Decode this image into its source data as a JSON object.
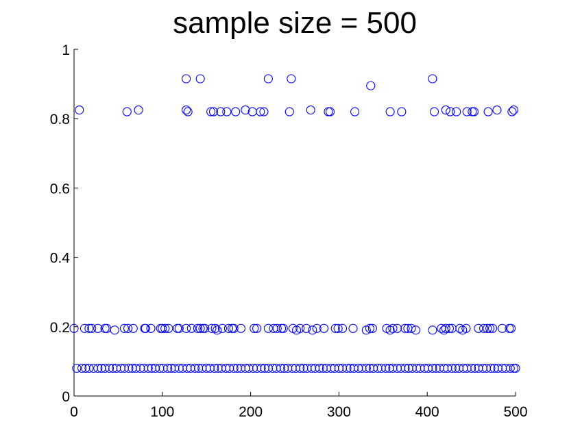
{
  "chart_data": {
    "type": "scatter",
    "title": "sample size = 500",
    "xlabel": "",
    "ylabel": "",
    "xlim": [
      0,
      500
    ],
    "ylim": [
      0,
      1
    ],
    "x_ticks": [
      0,
      100,
      200,
      300,
      400,
      500
    ],
    "y_ticks": [
      0,
      0.2,
      0.4,
      0.6,
      0.8,
      1
    ],
    "x_tick_labels": [
      "0",
      "100",
      "200",
      "300",
      "400",
      "500"
    ],
    "y_tick_labels": [
      "0",
      "0.2",
      "0.4",
      "0.6",
      "0.8",
      "1"
    ],
    "grid": false,
    "marker": "circle-open",
    "marker_color": "#0000ff",
    "series": [
      {
        "points": [
          [
            127,
            0.915
          ],
          [
            143,
            0.915
          ],
          [
            220,
            0.915
          ],
          [
            246,
            0.915
          ],
          [
            406,
            0.915
          ],
          [
            336,
            0.895
          ],
          [
            6,
            0.825
          ],
          [
            60,
            0.82
          ],
          [
            73,
            0.825
          ],
          [
            127,
            0.825
          ],
          [
            129,
            0.82
          ],
          [
            155,
            0.82
          ],
          [
            158,
            0.82
          ],
          [
            166,
            0.82
          ],
          [
            173,
            0.82
          ],
          [
            183,
            0.82
          ],
          [
            194,
            0.825
          ],
          [
            202,
            0.82
          ],
          [
            211,
            0.82
          ],
          [
            215,
            0.82
          ],
          [
            244,
            0.82
          ],
          [
            268,
            0.825
          ],
          [
            288,
            0.82
          ],
          [
            290,
            0.82
          ],
          [
            318,
            0.82
          ],
          [
            358,
            0.82
          ],
          [
            371,
            0.82
          ],
          [
            408,
            0.82
          ],
          [
            421,
            0.825
          ],
          [
            426,
            0.82
          ],
          [
            433,
            0.82
          ],
          [
            445,
            0.82
          ],
          [
            451,
            0.82
          ],
          [
            453,
            0.82
          ],
          [
            469,
            0.82
          ],
          [
            479,
            0.825
          ],
          [
            496,
            0.82
          ],
          [
            498,
            0.825
          ],
          [
            0,
            0.195
          ],
          [
            12,
            0.195
          ],
          [
            17,
            0.195
          ],
          [
            20,
            0.195
          ],
          [
            27,
            0.195
          ],
          [
            35,
            0.195
          ],
          [
            37,
            0.195
          ],
          [
            46,
            0.19
          ],
          [
            57,
            0.195
          ],
          [
            61,
            0.195
          ],
          [
            67,
            0.195
          ],
          [
            80,
            0.195
          ],
          [
            81,
            0.195
          ],
          [
            87,
            0.195
          ],
          [
            98,
            0.195
          ],
          [
            100,
            0.195
          ],
          [
            103,
            0.195
          ],
          [
            107,
            0.195
          ],
          [
            117,
            0.195
          ],
          [
            119,
            0.195
          ],
          [
            127,
            0.195
          ],
          [
            133,
            0.195
          ],
          [
            140,
            0.195
          ],
          [
            143,
            0.195
          ],
          [
            146,
            0.195
          ],
          [
            148,
            0.195
          ],
          [
            156,
            0.195
          ],
          [
            160,
            0.195
          ],
          [
            162,
            0.19
          ],
          [
            168,
            0.195
          ],
          [
            175,
            0.195
          ],
          [
            179,
            0.195
          ],
          [
            181,
            0.195
          ],
          [
            189,
            0.195
          ],
          [
            204,
            0.195
          ],
          [
            207,
            0.195
          ],
          [
            220,
            0.195
          ],
          [
            226,
            0.195
          ],
          [
            230,
            0.195
          ],
          [
            235,
            0.195
          ],
          [
            237,
            0.195
          ],
          [
            248,
            0.195
          ],
          [
            252,
            0.19
          ],
          [
            256,
            0.195
          ],
          [
            263,
            0.195
          ],
          [
            270,
            0.19
          ],
          [
            275,
            0.195
          ],
          [
            283,
            0.195
          ],
          [
            296,
            0.195
          ],
          [
            299,
            0.195
          ],
          [
            304,
            0.195
          ],
          [
            316,
            0.195
          ],
          [
            331,
            0.19
          ],
          [
            335,
            0.195
          ],
          [
            338,
            0.195
          ],
          [
            354,
            0.195
          ],
          [
            358,
            0.19
          ],
          [
            361,
            0.195
          ],
          [
            366,
            0.195
          ],
          [
            375,
            0.195
          ],
          [
            378,
            0.195
          ],
          [
            382,
            0.195
          ],
          [
            387,
            0.19
          ],
          [
            406,
            0.19
          ],
          [
            416,
            0.195
          ],
          [
            419,
            0.19
          ],
          [
            421,
            0.195
          ],
          [
            425,
            0.195
          ],
          [
            428,
            0.195
          ],
          [
            437,
            0.195
          ],
          [
            440,
            0.19
          ],
          [
            444,
            0.195
          ],
          [
            458,
            0.195
          ],
          [
            464,
            0.195
          ],
          [
            468,
            0.195
          ],
          [
            471,
            0.195
          ],
          [
            474,
            0.195
          ],
          [
            485,
            0.195
          ],
          [
            493,
            0.195
          ],
          [
            495,
            0.195
          ],
          [
            3,
            0.08
          ],
          [
            9,
            0.08
          ],
          [
            13,
            0.08
          ],
          [
            17,
            0.08
          ],
          [
            22,
            0.08
          ],
          [
            27,
            0.08
          ],
          [
            31,
            0.08
          ],
          [
            35,
            0.08
          ],
          [
            40,
            0.08
          ],
          [
            44,
            0.08
          ],
          [
            48,
            0.08
          ],
          [
            53,
            0.08
          ],
          [
            57,
            0.08
          ],
          [
            62,
            0.08
          ],
          [
            66,
            0.08
          ],
          [
            70,
            0.08
          ],
          [
            75,
            0.08
          ],
          [
            79,
            0.08
          ],
          [
            84,
            0.08
          ],
          [
            88,
            0.08
          ],
          [
            92,
            0.08
          ],
          [
            97,
            0.08
          ],
          [
            101,
            0.08
          ],
          [
            106,
            0.08
          ],
          [
            110,
            0.08
          ],
          [
            114,
            0.08
          ],
          [
            119,
            0.08
          ],
          [
            123,
            0.08
          ],
          [
            128,
            0.08
          ],
          [
            132,
            0.08
          ],
          [
            137,
            0.08
          ],
          [
            141,
            0.08
          ],
          [
            145,
            0.08
          ],
          [
            150,
            0.08
          ],
          [
            154,
            0.08
          ],
          [
            159,
            0.08
          ],
          [
            163,
            0.08
          ],
          [
            167,
            0.08
          ],
          [
            172,
            0.08
          ],
          [
            176,
            0.08
          ],
          [
            181,
            0.08
          ],
          [
            185,
            0.08
          ],
          [
            189,
            0.08
          ],
          [
            194,
            0.08
          ],
          [
            198,
            0.08
          ],
          [
            203,
            0.08
          ],
          [
            207,
            0.08
          ],
          [
            212,
            0.08
          ],
          [
            216,
            0.08
          ],
          [
            220,
            0.08
          ],
          [
            225,
            0.08
          ],
          [
            229,
            0.08
          ],
          [
            234,
            0.08
          ],
          [
            238,
            0.08
          ],
          [
            242,
            0.08
          ],
          [
            247,
            0.08
          ],
          [
            251,
            0.08
          ],
          [
            256,
            0.08
          ],
          [
            260,
            0.08
          ],
          [
            264,
            0.08
          ],
          [
            269,
            0.08
          ],
          [
            273,
            0.08
          ],
          [
            278,
            0.08
          ],
          [
            282,
            0.08
          ],
          [
            286,
            0.08
          ],
          [
            291,
            0.08
          ],
          [
            295,
            0.08
          ],
          [
            300,
            0.08
          ],
          [
            304,
            0.08
          ],
          [
            309,
            0.08
          ],
          [
            313,
            0.08
          ],
          [
            317,
            0.08
          ],
          [
            322,
            0.08
          ],
          [
            326,
            0.08
          ],
          [
            331,
            0.08
          ],
          [
            335,
            0.08
          ],
          [
            339,
            0.08
          ],
          [
            344,
            0.08
          ],
          [
            348,
            0.08
          ],
          [
            353,
            0.08
          ],
          [
            357,
            0.08
          ],
          [
            361,
            0.08
          ],
          [
            366,
            0.08
          ],
          [
            370,
            0.08
          ],
          [
            375,
            0.08
          ],
          [
            379,
            0.08
          ],
          [
            383,
            0.08
          ],
          [
            388,
            0.08
          ],
          [
            392,
            0.08
          ],
          [
            397,
            0.08
          ],
          [
            401,
            0.08
          ],
          [
            406,
            0.08
          ],
          [
            410,
            0.08
          ],
          [
            414,
            0.08
          ],
          [
            419,
            0.08
          ],
          [
            423,
            0.08
          ],
          [
            428,
            0.08
          ],
          [
            432,
            0.08
          ],
          [
            436,
            0.08
          ],
          [
            441,
            0.08
          ],
          [
            445,
            0.08
          ],
          [
            450,
            0.08
          ],
          [
            454,
            0.08
          ],
          [
            458,
            0.08
          ],
          [
            463,
            0.08
          ],
          [
            467,
            0.08
          ],
          [
            472,
            0.08
          ],
          [
            476,
            0.08
          ],
          [
            480,
            0.08
          ],
          [
            485,
            0.08
          ],
          [
            489,
            0.08
          ],
          [
            494,
            0.08
          ],
          [
            498,
            0.08
          ],
          [
            500,
            0.08
          ]
        ]
      }
    ]
  }
}
